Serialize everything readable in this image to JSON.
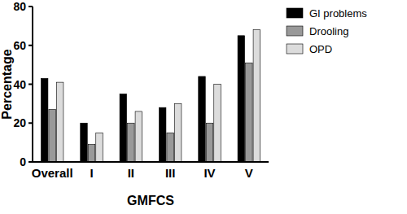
{
  "chart_data": {
    "type": "bar",
    "x_label": "GMFCS",
    "y_label": "Percentage",
    "categories": [
      "Overall",
      "I",
      "II",
      "III",
      "IV",
      "V"
    ],
    "series": [
      {
        "name": "GI problems",
        "color": "#000000",
        "values": [
          43,
          20,
          35,
          28,
          44,
          65
        ]
      },
      {
        "name": "Drooling",
        "color": "#999999",
        "values": [
          27,
          9,
          20,
          15,
          20,
          51
        ]
      },
      {
        "name": "OPD",
        "color": "#dcdcdc",
        "values": [
          41,
          15,
          26,
          30,
          40,
          68
        ]
      }
    ],
    "ylim": [
      0,
      80
    ],
    "yticks": [
      0,
      20,
      40,
      60,
      80
    ],
    "grid": false,
    "legend": "right"
  }
}
